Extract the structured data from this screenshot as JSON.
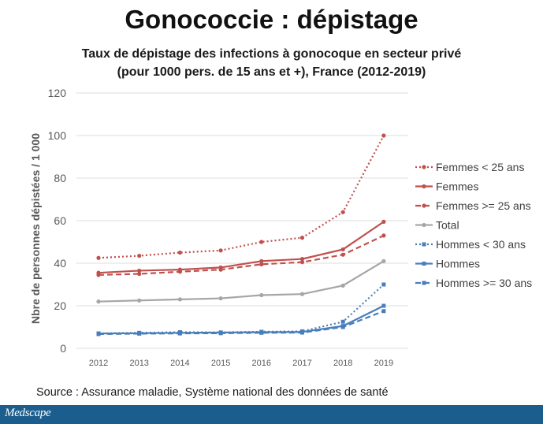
{
  "slide": {
    "title": "Gonococcie : dépistage",
    "source": "Source : Assurance maladie, Système national des données de santé",
    "logo": "Medscape"
  },
  "chart_data": {
    "type": "line",
    "title_lines": [
      "Taux de dépistage des infections à gonocoque en secteur privé",
      "(pour 1000 pers. de 15 ans et +), France (2012-2019)"
    ],
    "xlabel": "",
    "ylabel": "Nbre de personnes dépistées / 1 000",
    "ylim": [
      0,
      120
    ],
    "yticks": [
      0,
      20,
      40,
      60,
      80,
      100,
      120
    ],
    "categories": [
      "2012",
      "2013",
      "2014",
      "2015",
      "2016",
      "2017",
      "2018",
      "2019"
    ],
    "grid": "horizontal",
    "legend_position": "right",
    "series": [
      {
        "name": "Femmes < 25 ans",
        "color": "#c0504d",
        "style": "dotted",
        "marker": "circle",
        "values": [
          42.5,
          43.5,
          45,
          46,
          50,
          52,
          64,
          100
        ]
      },
      {
        "name": "Femmes",
        "color": "#c0504d",
        "style": "solid",
        "marker": "circle",
        "values": [
          35.5,
          36.5,
          37,
          38,
          41,
          42,
          46.5,
          59.5
        ]
      },
      {
        "name": "Femmes >= 25 ans",
        "color": "#c0504d",
        "style": "dashed",
        "marker": "circle",
        "values": [
          34.5,
          35,
          36,
          37,
          39.5,
          40.5,
          44,
          53
        ]
      },
      {
        "name": "Total",
        "color": "#a6a6a6",
        "style": "solid",
        "marker": "circle",
        "values": [
          22,
          22.5,
          23,
          23.5,
          25,
          25.5,
          29.5,
          41
        ]
      },
      {
        "name": "Hommes < 30 ans",
        "color": "#4a7ebb",
        "style": "dotted",
        "marker": "square",
        "values": [
          7,
          7.3,
          7.6,
          7.5,
          7.8,
          8,
          12.5,
          30
        ]
      },
      {
        "name": "Hommes",
        "color": "#4a7ebb",
        "style": "solid",
        "marker": "square",
        "values": [
          7,
          7.1,
          7.3,
          7.4,
          7.6,
          7.7,
          10.5,
          20
        ]
      },
      {
        "name": "Hommes >= 30 ans",
        "color": "#4a7ebb",
        "style": "dashed",
        "marker": "square",
        "values": [
          6.7,
          6.9,
          7,
          7.1,
          7.3,
          7.4,
          10,
          17.5
        ]
      }
    ]
  }
}
